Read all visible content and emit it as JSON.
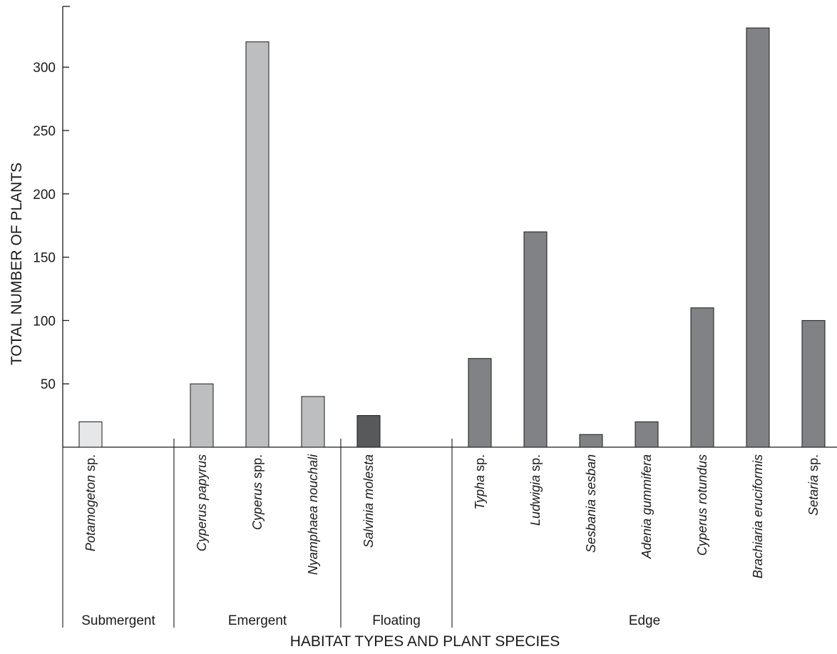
{
  "chart_data": {
    "type": "bar",
    "title": "",
    "xlabel": "HABITAT TYPES AND PLANT SPECIES",
    "ylabel": "TOTAL NUMBER OF PLANTS",
    "ylim": [
      0,
      350
    ],
    "yticks": [
      50,
      100,
      150,
      200,
      250,
      300
    ],
    "grid": false,
    "legend": "none",
    "groups": [
      {
        "name": "Submergent",
        "color": "#e6e7e8",
        "bars": [
          {
            "species": "Potamogeton",
            "suffix": " sp.",
            "value": 20
          }
        ]
      },
      {
        "name": "Emergent",
        "color": "#bcbec0",
        "bars": [
          {
            "species": "Cyperus papyrus",
            "suffix": "",
            "value": 50
          },
          {
            "species": "Cyperus",
            "suffix": " spp.",
            "value": 320
          },
          {
            "species": "Nyamphaea nouchali",
            "suffix": "",
            "value": 40
          }
        ]
      },
      {
        "name": "Floating",
        "color": "#58595b",
        "bars": [
          {
            "species": "Salvinia molesta",
            "suffix": "",
            "value": 25
          }
        ]
      },
      {
        "name": "Edge",
        "color": "#808285",
        "bars": [
          {
            "species": "Typha",
            "suffix": " sp.",
            "value": 70
          },
          {
            "species": "Ludwigia",
            "suffix": " sp.",
            "value": 170
          },
          {
            "species": "Sesbania sesban",
            "suffix": "",
            "value": 10
          },
          {
            "species": "Adenia gummifera",
            "suffix": "",
            "value": 20
          },
          {
            "species": "Cyperus rotundus",
            "suffix": "",
            "value": 110
          },
          {
            "species": "Brachiaria eruciformis",
            "suffix": "",
            "value": 331
          },
          {
            "species": "Setaria",
            "suffix": " sp.",
            "value": 100
          }
        ]
      }
    ]
  }
}
